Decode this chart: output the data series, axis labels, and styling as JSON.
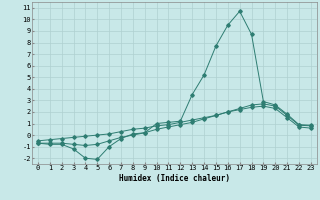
{
  "xlabel": "Humidex (Indice chaleur)",
  "x": [
    0,
    1,
    2,
    3,
    4,
    5,
    6,
    7,
    8,
    9,
    10,
    11,
    12,
    13,
    14,
    15,
    16,
    17,
    18,
    19,
    20,
    21,
    22,
    23
  ],
  "line1": [
    -0.7,
    -0.8,
    -0.8,
    -1.2,
    -2.0,
    -2.1,
    -1.0,
    -0.3,
    0.1,
    0.2,
    1.0,
    1.1,
    1.2,
    3.5,
    5.2,
    7.7,
    9.5,
    10.7,
    8.7,
    2.9,
    2.6,
    1.8,
    0.9,
    0.85
  ],
  "line2": [
    -0.7,
    -0.7,
    -0.7,
    -0.8,
    -0.9,
    -0.8,
    -0.5,
    -0.2,
    0.0,
    0.2,
    0.5,
    0.7,
    0.9,
    1.1,
    1.4,
    1.7,
    2.0,
    2.3,
    2.6,
    2.7,
    2.5,
    1.7,
    0.85,
    0.8
  ],
  "line3": [
    -0.5,
    -0.4,
    -0.3,
    -0.2,
    -0.1,
    0.0,
    0.1,
    0.3,
    0.5,
    0.6,
    0.8,
    0.9,
    1.1,
    1.3,
    1.5,
    1.7,
    2.0,
    2.2,
    2.4,
    2.5,
    2.3,
    1.5,
    0.7,
    0.6
  ],
  "color": "#2e7d72",
  "bg_color": "#c8e8e8",
  "grid_color": "#afd0d0",
  "ylim": [
    -2.5,
    11.5
  ],
  "xlim": [
    -0.5,
    23.5
  ],
  "yticks": [
    -2,
    -1,
    0,
    1,
    2,
    3,
    4,
    5,
    6,
    7,
    8,
    9,
    10,
    11
  ],
  "xticks": [
    0,
    1,
    2,
    3,
    4,
    5,
    6,
    7,
    8,
    9,
    10,
    11,
    12,
    13,
    14,
    15,
    16,
    17,
    18,
    19,
    20,
    21,
    22,
    23
  ],
  "label_fontsize": 5.5,
  "tick_fontsize": 5.0
}
